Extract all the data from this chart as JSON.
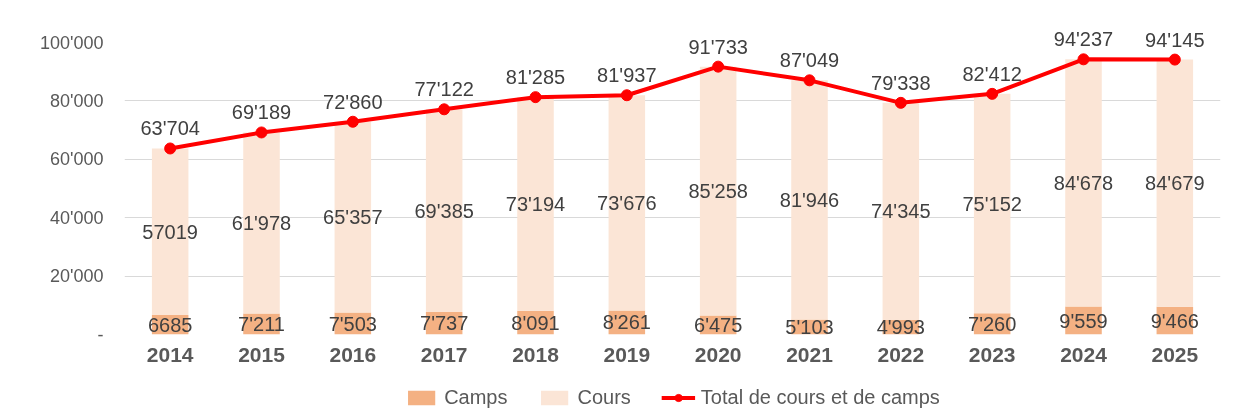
{
  "chart_data": {
    "type": "bar",
    "stacked": true,
    "categories": [
      "2014",
      "2015",
      "2016",
      "2017",
      "2018",
      "2019",
      "2020",
      "2021",
      "2022",
      "2023",
      "2024",
      "2025"
    ],
    "ylim": [
      0,
      100000
    ],
    "yticks": [
      {
        "value": 0,
        "label": "-"
      },
      {
        "value": 20000,
        "label": "20'000"
      },
      {
        "value": 40000,
        "label": "40'000"
      },
      {
        "value": 60000,
        "label": "60'000"
      },
      {
        "value": 80000,
        "label": "80'000"
      },
      {
        "value": 100000,
        "label": "100'000"
      }
    ],
    "grid": "y",
    "legend": "bottom",
    "series": [
      {
        "name": "Camps",
        "color": "#f4b183",
        "values": [
          6685,
          7211,
          7503,
          7737,
          8091,
          8261,
          6475,
          5103,
          4993,
          7260,
          9559,
          9466
        ],
        "value_labels": [
          "6685",
          "7'211",
          "7'503",
          "7'737",
          "8'091",
          "8'261",
          "6'475",
          "5'103",
          "4'993",
          "7'260",
          "9'559",
          "9'466"
        ]
      },
      {
        "name": "Cours",
        "color": "#fbe5d6",
        "values": [
          57019,
          61978,
          65357,
          69385,
          73194,
          73676,
          85258,
          81946,
          74345,
          75152,
          84678,
          84679
        ],
        "value_labels": [
          "57019",
          "61'978",
          "65'357",
          "69'385",
          "73'194",
          "73'676",
          "85'258",
          "81'946",
          "74'345",
          "75'152",
          "84'678",
          "84'679"
        ]
      },
      {
        "name": "Total de cours et de camps",
        "type": "line",
        "color": "#ff0000",
        "marker": "circle",
        "values": [
          63704,
          69189,
          72860,
          77122,
          81285,
          81937,
          91733,
          87049,
          79338,
          82412,
          94237,
          94145
        ],
        "value_labels": [
          "63'704",
          "69'189",
          "72'860",
          "77'122",
          "81'285",
          "81'937",
          "91'733",
          "87'049",
          "79'338",
          "82'412",
          "94'237",
          "94'145"
        ]
      }
    ]
  }
}
